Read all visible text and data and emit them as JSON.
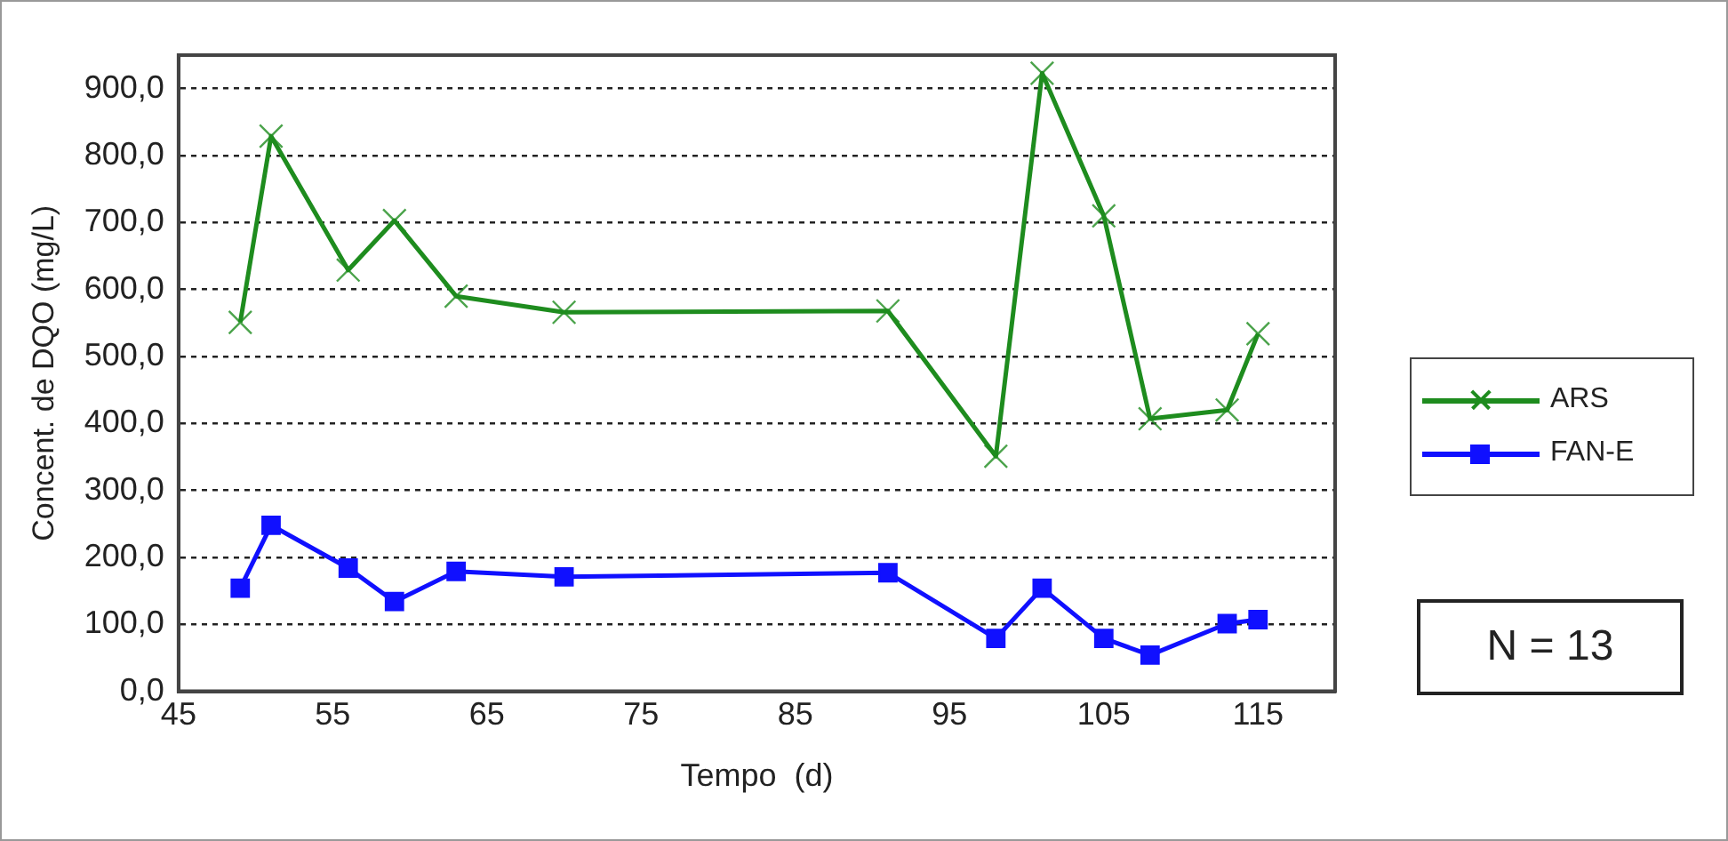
{
  "chart_data": {
    "type": "line",
    "xlabel": "Tempo  (d)",
    "ylabel": "Concent. de DQO (mg/L)",
    "x": [
      49,
      51,
      56,
      59,
      63,
      70,
      91,
      98,
      101,
      105,
      108,
      113,
      115
    ],
    "series": [
      {
        "name": "ARS",
        "color": "#1e8c1e",
        "marker": "cross",
        "values": [
          551,
          829,
          629,
          703,
          590,
          566,
          568,
          351,
          923,
          710,
          407,
          420,
          534
        ]
      },
      {
        "name": "FAN-E",
        "color": "#1010ff",
        "marker": "square",
        "values": [
          154,
          248,
          184,
          134,
          179,
          171,
          177,
          79,
          154,
          79,
          54,
          101,
          107
        ]
      }
    ],
    "xlim": [
      45,
      120
    ],
    "xticks": [
      45,
      55,
      65,
      75,
      85,
      95,
      105,
      115
    ],
    "ylim": [
      0,
      950
    ],
    "yticks": [
      {
        "value": 0,
        "label": "0,0"
      },
      {
        "value": 100,
        "label": "100,0"
      },
      {
        "value": 200,
        "label": "200,0"
      },
      {
        "value": 300,
        "label": "300,0"
      },
      {
        "value": 400,
        "label": "400,0"
      },
      {
        "value": 500,
        "label": "500,0"
      },
      {
        "value": 600,
        "label": "600,0"
      },
      {
        "value": 700,
        "label": "700,0"
      },
      {
        "value": 800,
        "label": "800,0"
      },
      {
        "value": 900,
        "label": "900,0"
      }
    ],
    "grid": "y",
    "legend": "right",
    "line_style": "solid",
    "annotations": [
      "N = 13"
    ]
  }
}
